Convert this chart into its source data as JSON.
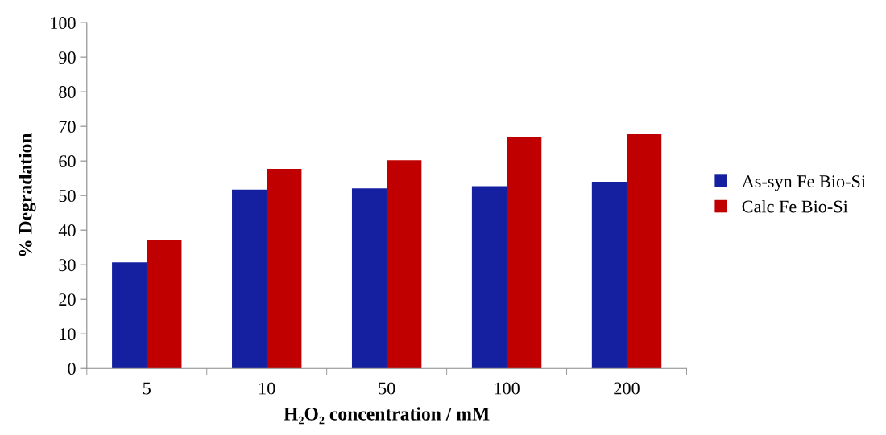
{
  "chart_data": {
    "type": "bar",
    "xlabel": "H₂O₂ concentration / mM",
    "ylabel": "% Degradation",
    "categories": [
      "5",
      "10",
      "50",
      "100",
      "200"
    ],
    "series": [
      {
        "name": "As-syn Fe Bio-Si",
        "color": "#1520a0",
        "values": [
          30.7,
          51.7,
          52.1,
          52.7,
          54.0
        ]
      },
      {
        "name": "Calc Fe Bio-Si",
        "color": "#c00000",
        "values": [
          37.2,
          57.7,
          60.2,
          67.0,
          67.7
        ]
      }
    ],
    "ylim": [
      0,
      100
    ],
    "yticks": [
      0,
      10,
      20,
      30,
      40,
      50,
      60,
      70,
      80,
      90,
      100
    ],
    "grid": false,
    "legend": "right"
  }
}
